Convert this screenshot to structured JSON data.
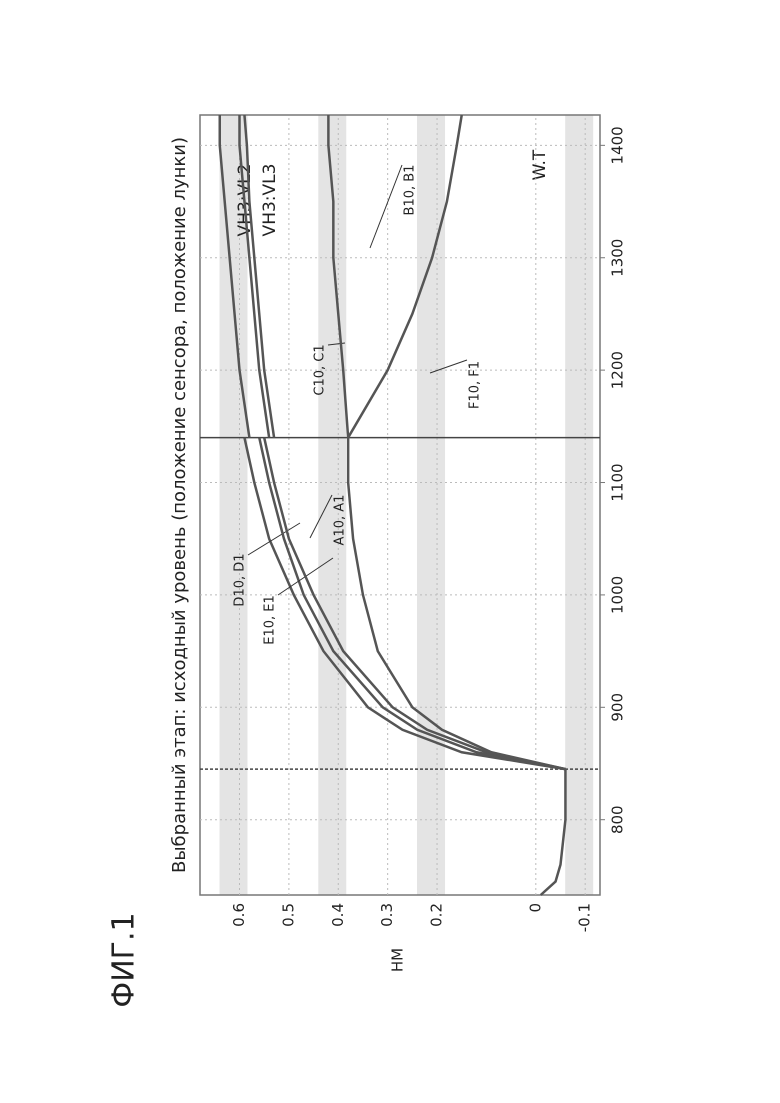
{
  "chart_data": {
    "type": "line",
    "figure_label": "ФИГ.1",
    "title": "Выбранный этап: исходный уровень (положение сенсора, положение лунки)",
    "y_label": "НМ",
    "annotation": "W.T",
    "xlim": [
      733,
      1427
    ],
    "xticks": [
      800,
      900,
      1000,
      1100,
      1200,
      1300,
      1400
    ],
    "ylim": [
      -0.13,
      0.68
    ],
    "yticks": [
      0.6,
      0.5,
      0.4,
      0.3,
      0.2,
      0,
      -0.1
    ],
    "vlines": [
      845,
      1140
    ],
    "grid": true,
    "series": [
      {
        "color": "#555",
        "x": [
          733,
          745,
          760,
          780,
          800,
          820,
          845
        ],
        "values": [
          -0.01,
          -0.04,
          -0.05,
          -0.055,
          -0.06,
          -0.06,
          -0.06
        ]
      },
      {
        "name": "D10, D1",
        "color": "#555",
        "x": [
          845,
          860,
          880,
          900,
          950,
          1000,
          1050,
          1100,
          1140
        ],
        "values": [
          -0.06,
          0.15,
          0.27,
          0.34,
          0.43,
          0.49,
          0.54,
          0.57,
          0.59
        ]
      },
      {
        "name": "E10, E1",
        "color": "#555",
        "x": [
          845,
          860,
          880,
          900,
          950,
          1000,
          1050,
          1100,
          1140
        ],
        "values": [
          -0.06,
          0.12,
          0.24,
          0.31,
          0.41,
          0.47,
          0.51,
          0.54,
          0.56
        ]
      },
      {
        "name": "A10, A1",
        "color": "#555",
        "x": [
          845,
          860,
          880,
          900,
          950,
          1000,
          1050,
          1100,
          1140
        ],
        "values": [
          -0.06,
          0.1,
          0.22,
          0.29,
          0.39,
          0.45,
          0.5,
          0.53,
          0.55
        ]
      },
      {
        "color": "#555",
        "x": [
          845,
          860,
          880,
          900,
          950,
          1000,
          1050,
          1100,
          1140
        ],
        "values": [
          -0.06,
          0.09,
          0.19,
          0.25,
          0.32,
          0.35,
          0.37,
          0.38,
          0.38
        ]
      },
      {
        "name": "VH3:VL2",
        "color": "#555",
        "x": [
          1140,
          1200,
          1250,
          1300,
          1350,
          1400,
          1427
        ],
        "values": [
          0.58,
          0.6,
          0.61,
          0.62,
          0.63,
          0.64,
          0.64
        ]
      },
      {
        "name": "VH3:VL3",
        "color": "#555",
        "x": [
          1140,
          1200,
          1250,
          1300,
          1350,
          1400,
          1427
        ],
        "values": [
          0.54,
          0.56,
          0.57,
          0.58,
          0.59,
          0.6,
          0.6
        ]
      },
      {
        "name": "C10, C1",
        "color": "#555",
        "x": [
          1140,
          1200,
          1250,
          1300,
          1350,
          1400,
          1427
        ],
        "values": [
          0.53,
          0.55,
          0.56,
          0.57,
          0.58,
          0.585,
          0.59
        ]
      },
      {
        "name": "B10, B1",
        "color": "#555",
        "x": [
          1140,
          1200,
          1250,
          1300,
          1350,
          1400,
          1427
        ],
        "values": [
          0.38,
          0.39,
          0.4,
          0.41,
          0.41,
          0.42,
          0.42
        ]
      },
      {
        "name": "F10, F1",
        "color": "#555",
        "x": [
          1140,
          1200,
          1250,
          1300,
          1350,
          1400,
          1427
        ],
        "values": [
          0.38,
          0.3,
          0.25,
          0.21,
          0.18,
          0.16,
          0.15
        ]
      }
    ]
  }
}
